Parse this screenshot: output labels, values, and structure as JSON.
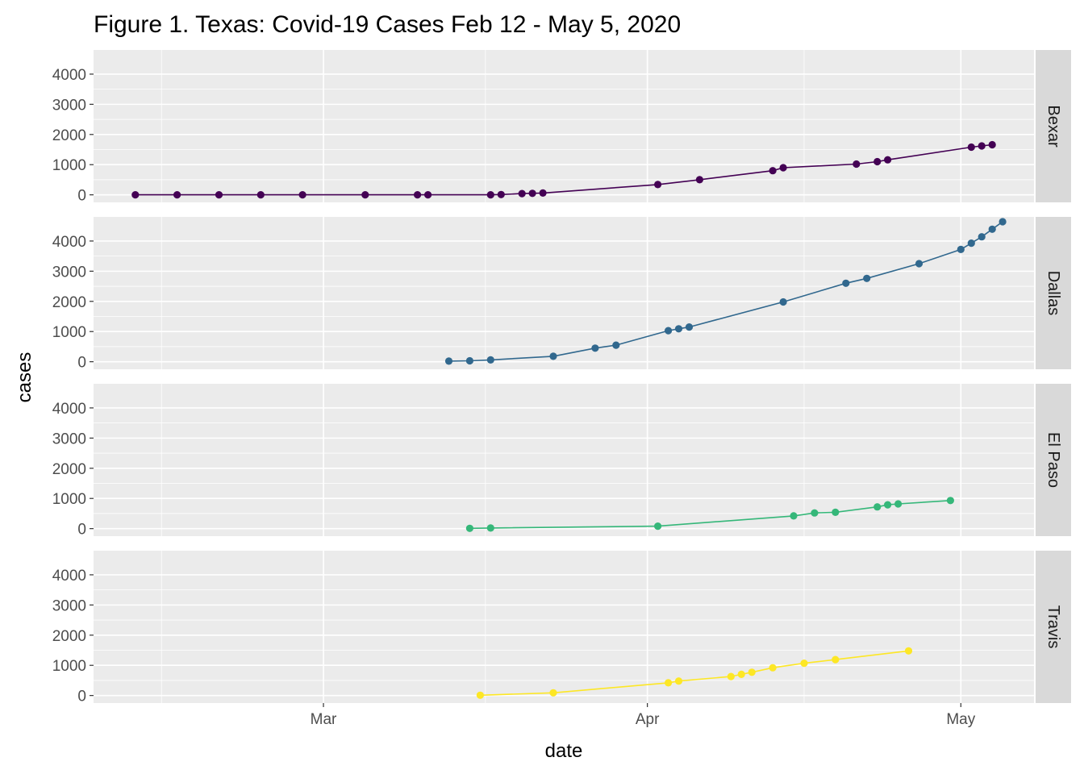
{
  "chart_data": {
    "type": "line",
    "title": "Figure 1. Texas: Covid-19 Cases Feb 12 - May 5, 2020",
    "xlabel": "date",
    "ylabel": "cases",
    "x_ticks": [
      {
        "label": "Mar",
        "date": "2020-03-01"
      },
      {
        "label": "Apr",
        "date": "2020-04-01"
      },
      {
        "label": "May",
        "date": "2020-05-01"
      }
    ],
    "y_ticks": [
      0,
      1000,
      2000,
      3000,
      4000
    ],
    "xlim": [
      "2020-02-08",
      "2020-05-08"
    ],
    "ylim": [
      -250,
      4800
    ],
    "grid": true,
    "facets": [
      {
        "name": "Bexar",
        "color": "#440154",
        "points": [
          {
            "x": "2020-02-12",
            "y": 0
          },
          {
            "x": "2020-02-16",
            "y": 0
          },
          {
            "x": "2020-02-20",
            "y": 0
          },
          {
            "x": "2020-02-24",
            "y": 0
          },
          {
            "x": "2020-02-28",
            "y": 0
          },
          {
            "x": "2020-03-05",
            "y": 0
          },
          {
            "x": "2020-03-10",
            "y": 0
          },
          {
            "x": "2020-03-11",
            "y": 0
          },
          {
            "x": "2020-03-17",
            "y": 0
          },
          {
            "x": "2020-03-18",
            "y": 10
          },
          {
            "x": "2020-03-20",
            "y": 40
          },
          {
            "x": "2020-03-21",
            "y": 50
          },
          {
            "x": "2020-03-22",
            "y": 60
          },
          {
            "x": "2020-04-02",
            "y": 340
          },
          {
            "x": "2020-04-06",
            "y": 500
          },
          {
            "x": "2020-04-13",
            "y": 800
          },
          {
            "x": "2020-04-14",
            "y": 900
          },
          {
            "x": "2020-04-21",
            "y": 1020
          },
          {
            "x": "2020-04-23",
            "y": 1100
          },
          {
            "x": "2020-04-24",
            "y": 1160
          },
          {
            "x": "2020-05-02",
            "y": 1580
          },
          {
            "x": "2020-05-03",
            "y": 1620
          },
          {
            "x": "2020-05-04",
            "y": 1660
          }
        ]
      },
      {
        "name": "Dallas",
        "color": "#31688e",
        "points": [
          {
            "x": "2020-03-13",
            "y": 20
          },
          {
            "x": "2020-03-15",
            "y": 30
          },
          {
            "x": "2020-03-17",
            "y": 60
          },
          {
            "x": "2020-03-23",
            "y": 180
          },
          {
            "x": "2020-03-27",
            "y": 450
          },
          {
            "x": "2020-03-29",
            "y": 550
          },
          {
            "x": "2020-04-03",
            "y": 1030
          },
          {
            "x": "2020-04-04",
            "y": 1090
          },
          {
            "x": "2020-04-05",
            "y": 1150
          },
          {
            "x": "2020-04-14",
            "y": 1980
          },
          {
            "x": "2020-04-20",
            "y": 2600
          },
          {
            "x": "2020-04-22",
            "y": 2760
          },
          {
            "x": "2020-04-27",
            "y": 3250
          },
          {
            "x": "2020-05-01",
            "y": 3720
          },
          {
            "x": "2020-05-02",
            "y": 3930
          },
          {
            "x": "2020-05-03",
            "y": 4140
          },
          {
            "x": "2020-05-04",
            "y": 4390
          },
          {
            "x": "2020-05-05",
            "y": 4640
          }
        ]
      },
      {
        "name": "El Paso",
        "color": "#35b779",
        "points": [
          {
            "x": "2020-03-15",
            "y": 10
          },
          {
            "x": "2020-03-17",
            "y": 20
          },
          {
            "x": "2020-04-02",
            "y": 80
          },
          {
            "x": "2020-04-15",
            "y": 420
          },
          {
            "x": "2020-04-17",
            "y": 520
          },
          {
            "x": "2020-04-19",
            "y": 540
          },
          {
            "x": "2020-04-23",
            "y": 720
          },
          {
            "x": "2020-04-24",
            "y": 790
          },
          {
            "x": "2020-04-25",
            "y": 820
          },
          {
            "x": "2020-04-30",
            "y": 930
          }
        ]
      },
      {
        "name": "Travis",
        "color": "#fde725",
        "points": [
          {
            "x": "2020-03-16",
            "y": 10
          },
          {
            "x": "2020-03-23",
            "y": 90
          },
          {
            "x": "2020-04-03",
            "y": 420
          },
          {
            "x": "2020-04-04",
            "y": 480
          },
          {
            "x": "2020-04-09",
            "y": 630
          },
          {
            "x": "2020-04-10",
            "y": 700
          },
          {
            "x": "2020-04-11",
            "y": 770
          },
          {
            "x": "2020-04-13",
            "y": 920
          },
          {
            "x": "2020-04-16",
            "y": 1070
          },
          {
            "x": "2020-04-19",
            "y": 1190
          },
          {
            "x": "2020-04-26",
            "y": 1480
          }
        ]
      }
    ]
  }
}
